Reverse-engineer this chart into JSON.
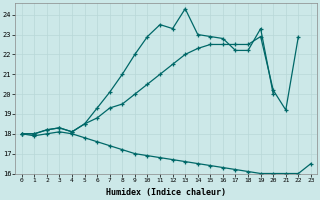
{
  "xlabel": "Humidex (Indice chaleur)",
  "ylabel": "",
  "xlim": [
    -0.5,
    23.5
  ],
  "ylim": [
    16,
    24.6
  ],
  "yticks": [
    16,
    17,
    18,
    19,
    20,
    21,
    22,
    23,
    24
  ],
  "xticks": [
    0,
    1,
    2,
    3,
    4,
    5,
    6,
    7,
    8,
    9,
    10,
    11,
    12,
    13,
    14,
    15,
    16,
    17,
    18,
    19,
    20,
    21,
    22,
    23
  ],
  "bg_color": "#cce8e8",
  "grid_color": "#aacccc",
  "line_color": "#006868",
  "lines": [
    {
      "x": [
        0,
        1,
        2,
        3,
        4,
        5,
        6,
        7,
        8,
        9,
        10,
        11,
        12,
        13,
        14,
        15,
        16,
        17,
        18,
        19,
        20
      ],
      "y": [
        18.0,
        18.0,
        18.2,
        18.3,
        18.1,
        18.5,
        19.3,
        20.1,
        21.0,
        22.0,
        22.9,
        23.5,
        23.3,
        24.3,
        23.0,
        22.9,
        22.8,
        22.2,
        22.2,
        23.3,
        20.0
      ]
    },
    {
      "x": [
        0,
        1,
        2,
        3,
        4,
        5,
        6,
        7,
        8,
        9,
        10,
        11,
        12,
        13,
        14,
        15,
        16,
        17,
        18,
        19,
        20,
        21,
        22
      ],
      "y": [
        18.0,
        18.0,
        18.2,
        18.3,
        18.1,
        18.5,
        18.8,
        19.3,
        19.5,
        20.0,
        20.5,
        21.0,
        21.5,
        22.0,
        22.3,
        22.5,
        22.5,
        22.5,
        22.5,
        22.9,
        20.2,
        19.2,
        22.9
      ]
    },
    {
      "x": [
        0,
        1,
        2,
        3,
        4,
        5,
        6,
        7,
        8,
        9,
        10,
        11,
        12,
        13,
        14,
        15,
        16,
        17,
        18,
        19,
        20,
        21,
        22,
        23
      ],
      "y": [
        18.0,
        17.9,
        18.0,
        18.1,
        18.0,
        17.8,
        17.6,
        17.4,
        17.2,
        17.0,
        16.9,
        16.8,
        16.7,
        16.6,
        16.5,
        16.4,
        16.3,
        16.2,
        16.1,
        16.0,
        16.0,
        16.0,
        16.0,
        16.5
      ]
    }
  ]
}
